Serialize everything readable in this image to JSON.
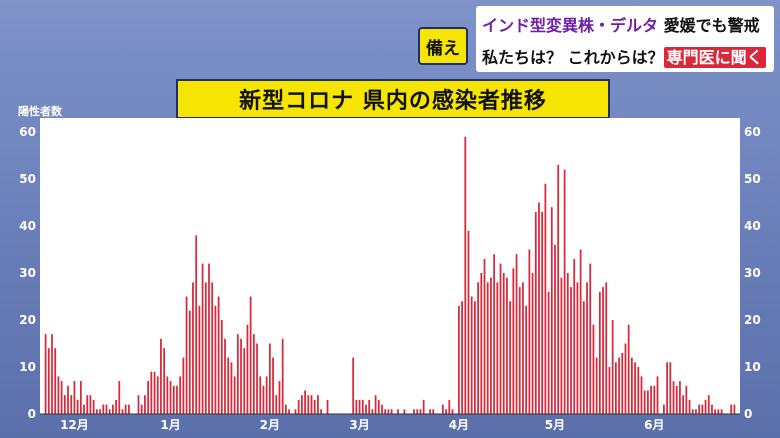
{
  "headline": {
    "tag": "備え",
    "line1_highlight": "インド型変異株・デルタ",
    "line1_rest": "愛媛でも警戒",
    "line2_main": "私たちは？ これからは？",
    "line2_box": "専門医に聞く"
  },
  "colors": {
    "bar": "#d8283a",
    "accent_yellow": "#f5e500",
    "background": "#6d82bc"
  },
  "chart_data": {
    "type": "bar",
    "title": "新型コロナ 県内の感染者推移",
    "ylabel": "陽性者数",
    "xlabel": "",
    "ylim": [
      0,
      60
    ],
    "yticks": [
      0,
      10,
      20,
      30,
      40,
      50,
      60
    ],
    "grid": false,
    "month_labels": [
      {
        "label": "12月",
        "day_index": 9
      },
      {
        "label": "1月",
        "day_index": 39
      },
      {
        "label": "2月",
        "day_index": 70
      },
      {
        "label": "3月",
        "day_index": 98
      },
      {
        "label": "4月",
        "day_index": 129
      },
      {
        "label": "5月",
        "day_index": 159
      },
      {
        "label": "6月",
        "day_index": 190
      }
    ],
    "series": [
      {
        "values": [
          17,
          14,
          17,
          14,
          8,
          7,
          4,
          6,
          4,
          7,
          3,
          7,
          2,
          4,
          4,
          3,
          1,
          1,
          2,
          2,
          1,
          2,
          3,
          7,
          1,
          2,
          2,
          0,
          0,
          4,
          2,
          4,
          7,
          9,
          9,
          8,
          16,
          14,
          8,
          7,
          6,
          6,
          8,
          12,
          25,
          22,
          28,
          38,
          23,
          32,
          28,
          32,
          28,
          23,
          25,
          20,
          16,
          12,
          11,
          8,
          17,
          16,
          14,
          19,
          25,
          17,
          15,
          8,
          6,
          8,
          15,
          12,
          4,
          7,
          16,
          2,
          1,
          0,
          1,
          3,
          4,
          5,
          4,
          4,
          3,
          4,
          1,
          0,
          3,
          0,
          0,
          0,
          0,
          0,
          0,
          0,
          12,
          3,
          3,
          3,
          2,
          3,
          1,
          4,
          3,
          2,
          1,
          1,
          1,
          0,
          1,
          0,
          1,
          0,
          0,
          1,
          1,
          1,
          3,
          0,
          1,
          1,
          0,
          0,
          2,
          1,
          3,
          1,
          0,
          23,
          24,
          59,
          39,
          25,
          24,
          28,
          30,
          33,
          28,
          29,
          34,
          28,
          32,
          30,
          29,
          24,
          31,
          34,
          27,
          28,
          23,
          35,
          30,
          43,
          45,
          43,
          49,
          26,
          44,
          36,
          53,
          29,
          52,
          30,
          27,
          33,
          28,
          35,
          24,
          28,
          32,
          19,
          12,
          26,
          27,
          28,
          10,
          20,
          11,
          12,
          13,
          15,
          19,
          12,
          11,
          10,
          8,
          5,
          5,
          6,
          6,
          8,
          0,
          2,
          11,
          11,
          7,
          6,
          7,
          4,
          6,
          3,
          1,
          1,
          2,
          2,
          3,
          4,
          2,
          1,
          1,
          1,
          0,
          0,
          2,
          2
        ]
      }
    ]
  }
}
